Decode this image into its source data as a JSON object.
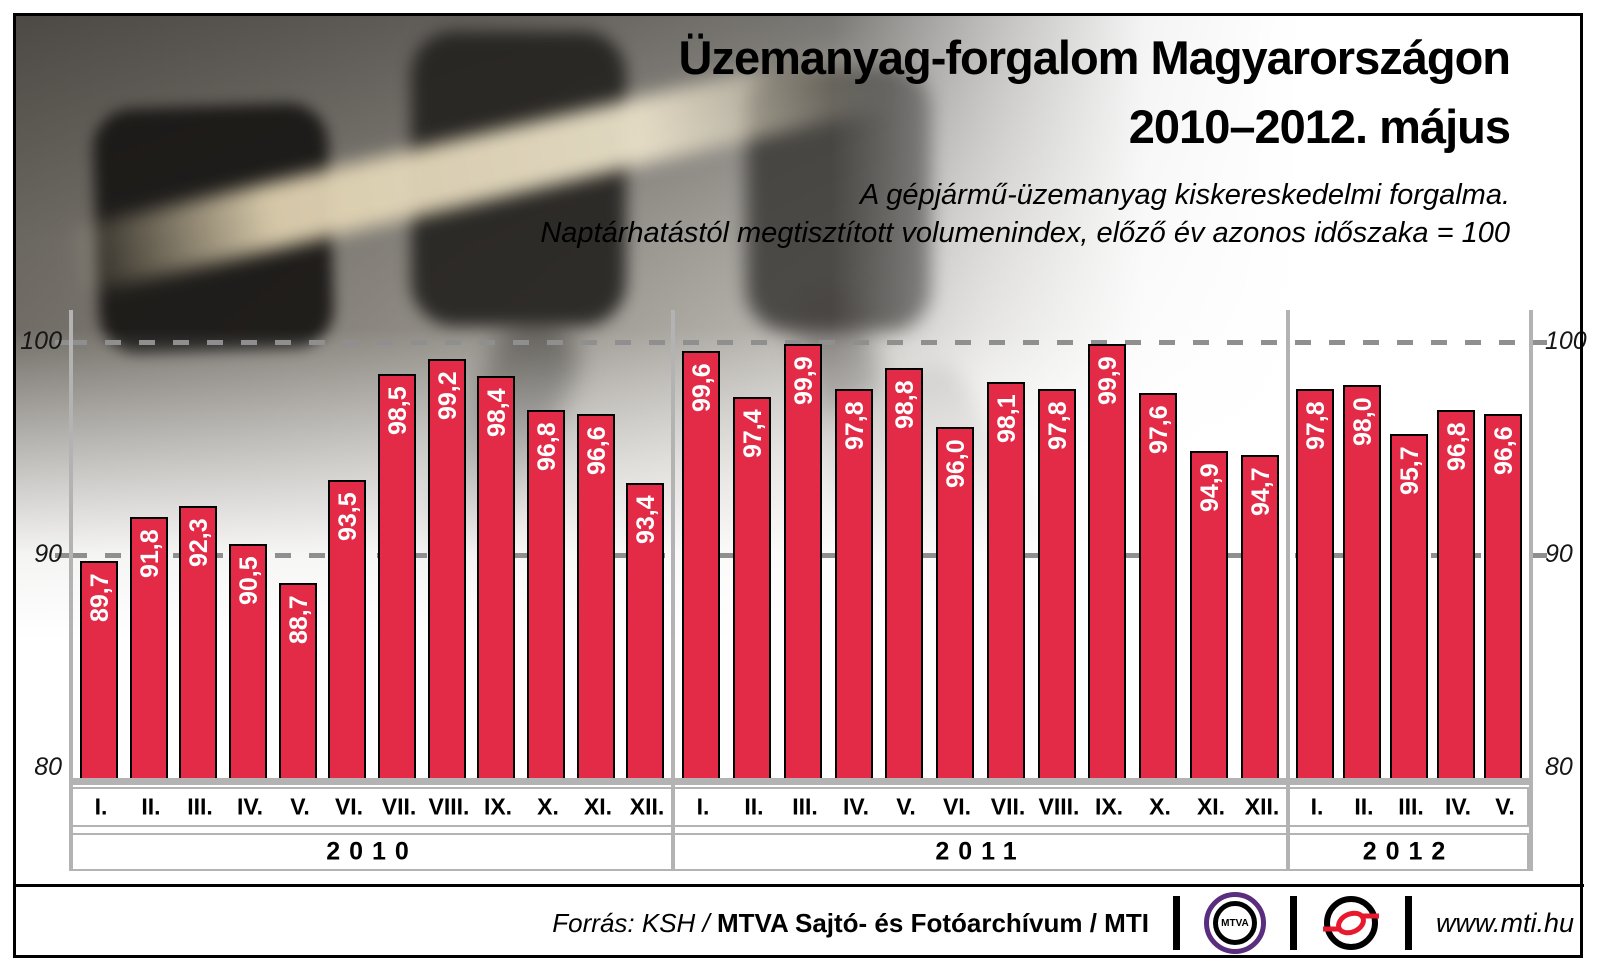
{
  "title": {
    "line1": "Üzemanyag-forgalom Magyarországon",
    "line2": "2010–2012. május"
  },
  "subtitle": {
    "line1": "A gépjármű-üzemanyag kiskereskedelmi forgalma.",
    "line2": "Naptárhatástól megtisztított volumenindex, előző év azonos időszaka = 100"
  },
  "chart_data": {
    "type": "bar",
    "title": "Üzemanyag-forgalom Magyarországon 2010–2012. május",
    "xlabel": "",
    "ylabel": "",
    "ylim": [
      80,
      101
    ],
    "yticks": [
      100,
      90,
      80
    ],
    "gridlines": [
      100,
      90
    ],
    "grid_style": "dashed",
    "legend_position": "none",
    "bar_color": "#e32b47",
    "bar_border_color": "#000000",
    "value_label_color": "#ffffff",
    "axis_color": "#b3b3b3",
    "groups": [
      {
        "year": "2010",
        "categories": [
          "I.",
          "II.",
          "III.",
          "IV.",
          "V.",
          "VI.",
          "VII.",
          "VIII.",
          "IX.",
          "X.",
          "XI.",
          "XII."
        ],
        "values": [
          89.7,
          91.8,
          92.3,
          90.5,
          88.7,
          93.5,
          98.5,
          99.2,
          98.4,
          96.8,
          96.6,
          93.4
        ]
      },
      {
        "year": "2011",
        "categories": [
          "I.",
          "II.",
          "III.",
          "IV.",
          "V.",
          "VI.",
          "VII.",
          "VIII.",
          "IX.",
          "X.",
          "XI.",
          "XII."
        ],
        "values": [
          99.6,
          97.4,
          99.9,
          97.8,
          98.8,
          96.0,
          98.1,
          97.8,
          99.9,
          97.6,
          94.9,
          94.7
        ]
      },
      {
        "year": "2012",
        "categories": [
          "I.",
          "II.",
          "III.",
          "IV.",
          "V."
        ],
        "values": [
          97.8,
          98.0,
          95.7,
          96.8,
          96.6
        ]
      }
    ]
  },
  "footer": {
    "source_prefix": "Forrás: KSH /",
    "source_main": "MTVA Sajtó- és Fotóarchívum",
    "source_suffix": "/ MTI",
    "mtva_logo_text": "MTVA",
    "website": "www.mti.hu"
  },
  "colors": {
    "accent_red": "#e32b47",
    "mtva_purple": "#5b2d7e",
    "mti_red": "#e8192c",
    "axis_gray": "#b3b3b3"
  }
}
